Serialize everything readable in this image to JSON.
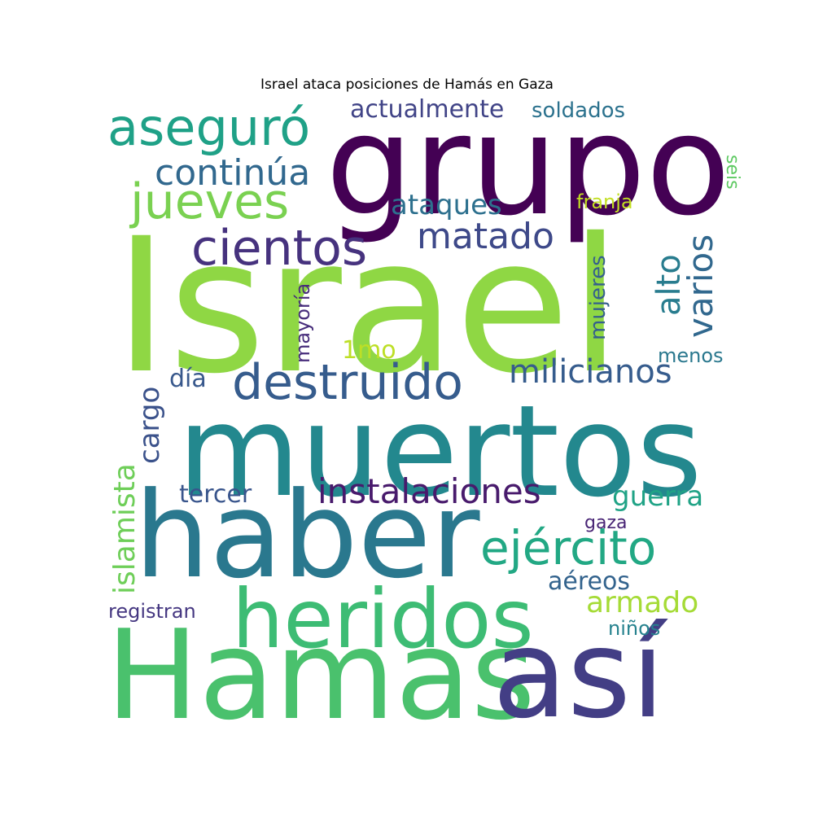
{
  "title": "Israel ataca posiciones de Hamás en Gaza",
  "words": [
    {
      "text": "grupo",
      "color": "#440154"
    },
    {
      "text": "Israel",
      "color": "#8fd744"
    },
    {
      "text": "muertos",
      "color": "#23888e"
    },
    {
      "text": "haber",
      "color": "#2a788e"
    },
    {
      "text": "Hamas",
      "color": "#4ac16d"
    },
    {
      "text": "así",
      "color": "#433e85"
    },
    {
      "text": "heridos",
      "color": "#3dbc74"
    },
    {
      "text": "aseguró",
      "color": "#1fa187"
    },
    {
      "text": "jueves",
      "color": "#7ad151"
    },
    {
      "text": "continúa",
      "color": "#31688e"
    },
    {
      "text": "cientos",
      "color": "#46327e"
    },
    {
      "text": "destruido",
      "color": "#365c8d"
    },
    {
      "text": "ejército",
      "color": "#22a884"
    },
    {
      "text": "matado",
      "color": "#3e4989"
    },
    {
      "text": "actualmente",
      "color": "#414487"
    },
    {
      "text": "soldados",
      "color": "#2c728e"
    },
    {
      "text": "ataques",
      "color": "#2d708e"
    },
    {
      "text": "franja",
      "color": "#c2df23"
    },
    {
      "text": "seis",
      "color": "#5ec962"
    },
    {
      "text": "varios",
      "color": "#31688e"
    },
    {
      "text": "alto",
      "color": "#287c8e"
    },
    {
      "text": "mujeres",
      "color": "#355f8d"
    },
    {
      "text": "mayoría",
      "color": "#472d7b"
    },
    {
      "text": "1mo",
      "color": "#bddf26"
    },
    {
      "text": "menos",
      "color": "#2a788e"
    },
    {
      "text": "milicianos",
      "color": "#365c8d"
    },
    {
      "text": "día",
      "color": "#38588c"
    },
    {
      "text": "cargo",
      "color": "#3b528b"
    },
    {
      "text": "islamista",
      "color": "#6ece58"
    },
    {
      "text": "instalaciones",
      "color": "#481a6c"
    },
    {
      "text": "tercer",
      "color": "#39558c"
    },
    {
      "text": "guerra",
      "color": "#20a386"
    },
    {
      "text": "gaza",
      "color": "#482475"
    },
    {
      "text": "aéreos",
      "color": "#33638d"
    },
    {
      "text": "armado",
      "color": "#a5db36"
    },
    {
      "text": "registran",
      "color": "#453781"
    },
    {
      "text": "niños",
      "color": "#26828e"
    }
  ]
}
